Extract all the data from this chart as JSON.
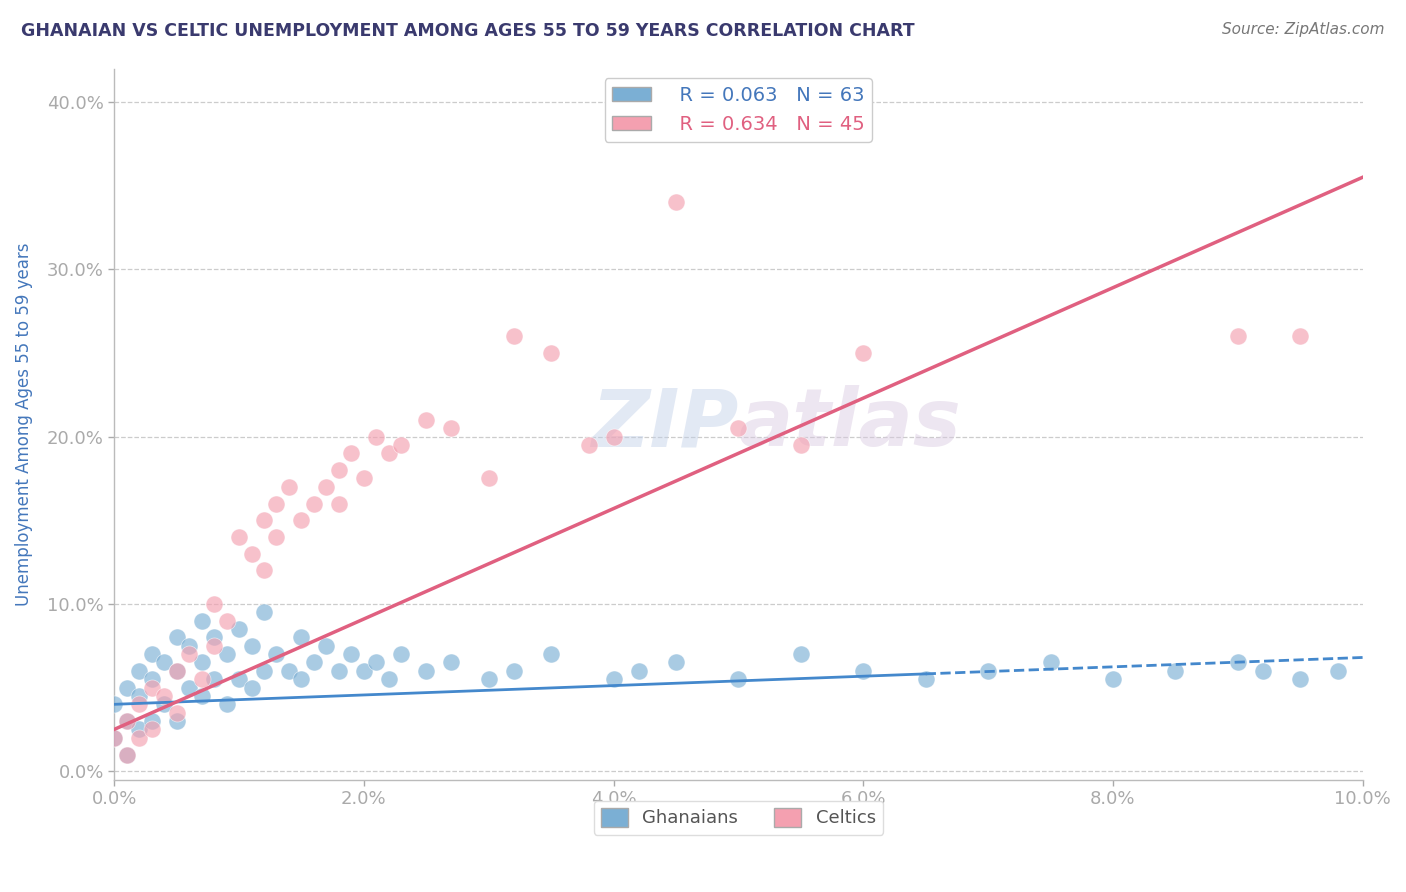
{
  "title": "GHANAIAN VS CELTIC UNEMPLOYMENT AMONG AGES 55 TO 59 YEARS CORRELATION CHART",
  "source": "Source: ZipAtlas.com",
  "xlabel": "",
  "ylabel": "Unemployment Among Ages 55 to 59 years",
  "xlim": [
    0.0,
    0.1
  ],
  "ylim": [
    -0.005,
    0.42
  ],
  "xticks": [
    0.0,
    0.02,
    0.04,
    0.06,
    0.08,
    0.1
  ],
  "yticks": [
    0.0,
    0.1,
    0.2,
    0.3,
    0.4
  ],
  "title_color": "#3a3a6e",
  "axis_label_color": "#4477bb",
  "tick_label_color": "#4477bb",
  "source_color": "#777777",
  "grid_color": "#cccccc",
  "watermark": "ZIPatlas",
  "ghanaian_color": "#7bafd4",
  "celtic_color": "#f4a0b0",
  "ghanaian_line_color": "#4488cc",
  "celtic_line_color": "#e06080",
  "legend_R_ghanaian": "R = 0.063",
  "legend_N_ghanaian": "N = 63",
  "legend_R_celtic": "R = 0.634",
  "legend_N_celtic": "N = 45",
  "ghanaian_scatter_x": [
    0.0,
    0.0,
    0.001,
    0.001,
    0.001,
    0.002,
    0.002,
    0.002,
    0.003,
    0.003,
    0.003,
    0.004,
    0.004,
    0.005,
    0.005,
    0.005,
    0.006,
    0.006,
    0.007,
    0.007,
    0.007,
    0.008,
    0.008,
    0.009,
    0.009,
    0.01,
    0.01,
    0.011,
    0.011,
    0.012,
    0.012,
    0.013,
    0.014,
    0.015,
    0.015,
    0.016,
    0.017,
    0.018,
    0.019,
    0.02,
    0.021,
    0.022,
    0.023,
    0.025,
    0.027,
    0.03,
    0.032,
    0.035,
    0.04,
    0.042,
    0.045,
    0.05,
    0.055,
    0.06,
    0.065,
    0.07,
    0.075,
    0.08,
    0.085,
    0.09,
    0.092,
    0.095,
    0.098
  ],
  "ghanaian_scatter_y": [
    0.02,
    0.04,
    0.01,
    0.03,
    0.05,
    0.025,
    0.045,
    0.06,
    0.03,
    0.055,
    0.07,
    0.04,
    0.065,
    0.03,
    0.06,
    0.08,
    0.05,
    0.075,
    0.045,
    0.065,
    0.09,
    0.055,
    0.08,
    0.04,
    0.07,
    0.055,
    0.085,
    0.05,
    0.075,
    0.06,
    0.095,
    0.07,
    0.06,
    0.055,
    0.08,
    0.065,
    0.075,
    0.06,
    0.07,
    0.06,
    0.065,
    0.055,
    0.07,
    0.06,
    0.065,
    0.055,
    0.06,
    0.07,
    0.055,
    0.06,
    0.065,
    0.055,
    0.07,
    0.06,
    0.055,
    0.06,
    0.065,
    0.055,
    0.06,
    0.065,
    0.06,
    0.055,
    0.06
  ],
  "celtic_scatter_x": [
    0.0,
    0.001,
    0.001,
    0.002,
    0.002,
    0.003,
    0.003,
    0.004,
    0.005,
    0.005,
    0.006,
    0.007,
    0.008,
    0.008,
    0.009,
    0.01,
    0.011,
    0.012,
    0.012,
    0.013,
    0.013,
    0.014,
    0.015,
    0.016,
    0.017,
    0.018,
    0.018,
    0.019,
    0.02,
    0.021,
    0.022,
    0.023,
    0.025,
    0.027,
    0.03,
    0.032,
    0.035,
    0.038,
    0.04,
    0.045,
    0.05,
    0.055,
    0.06,
    0.09,
    0.095
  ],
  "celtic_scatter_y": [
    0.02,
    0.01,
    0.03,
    0.02,
    0.04,
    0.025,
    0.05,
    0.045,
    0.035,
    0.06,
    0.07,
    0.055,
    0.075,
    0.1,
    0.09,
    0.14,
    0.13,
    0.12,
    0.15,
    0.14,
    0.16,
    0.17,
    0.15,
    0.16,
    0.17,
    0.18,
    0.16,
    0.19,
    0.175,
    0.2,
    0.19,
    0.195,
    0.21,
    0.205,
    0.175,
    0.26,
    0.25,
    0.195,
    0.2,
    0.34,
    0.205,
    0.195,
    0.25,
    0.26,
    0.26
  ],
  "ghanaian_trend_x": [
    0.0,
    0.1
  ],
  "ghanaian_trend_y": [
    0.04,
    0.068
  ],
  "celtic_trend_x": [
    0.0,
    0.1
  ],
  "celtic_trend_y": [
    0.025,
    0.355
  ]
}
